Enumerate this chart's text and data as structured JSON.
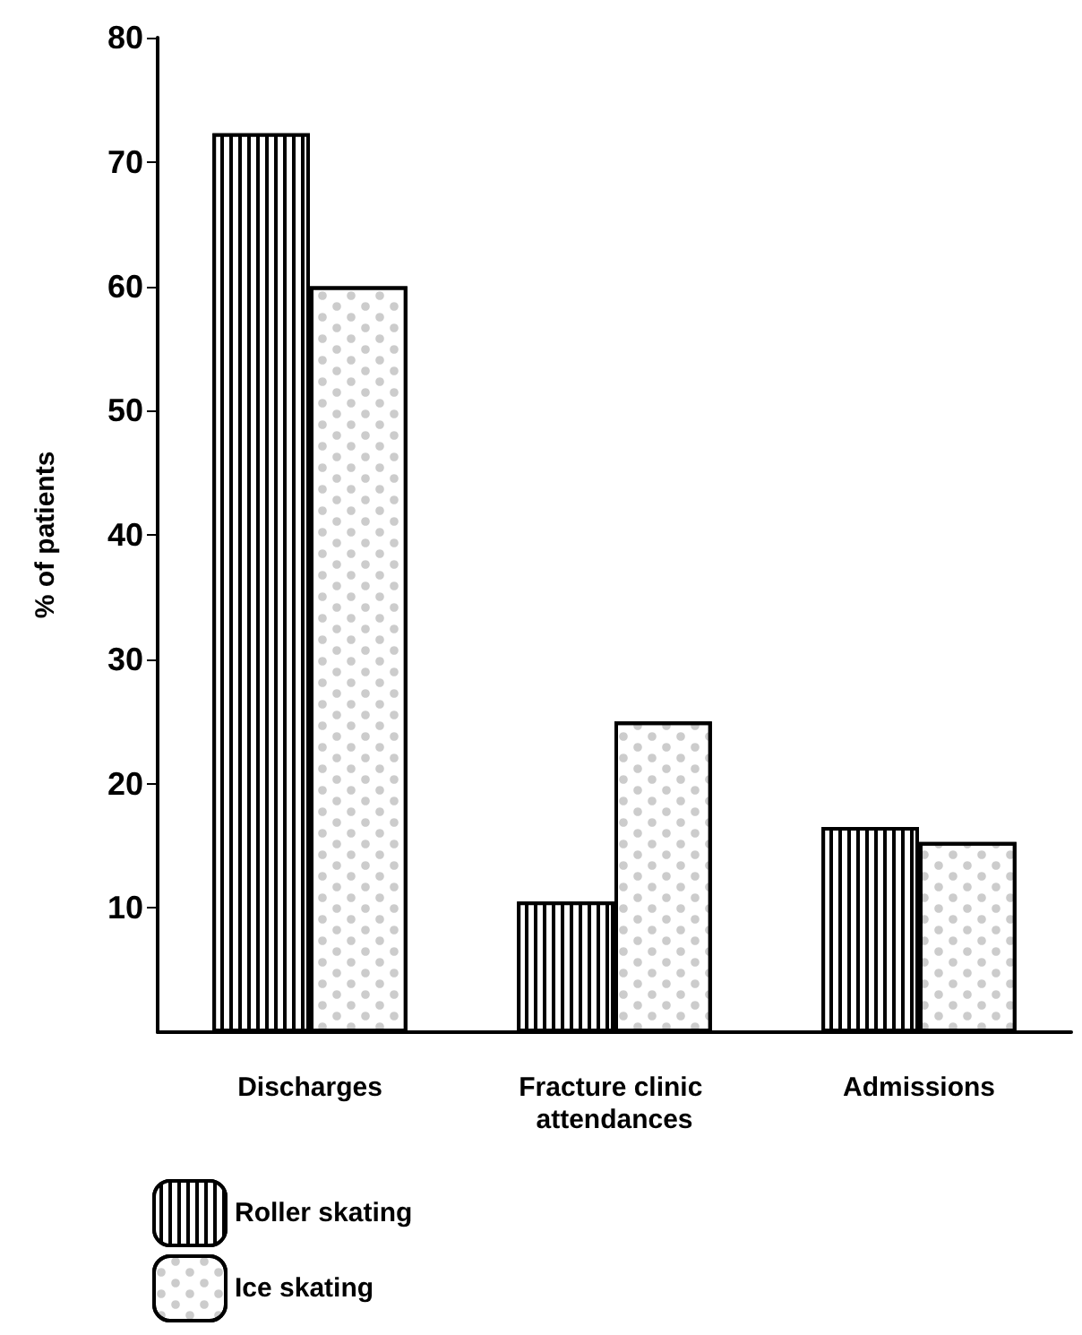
{
  "chart_data": {
    "type": "bar",
    "ylabel": "% of patients",
    "categories": [
      "Discharges",
      "Fracture clinic attendances",
      "Admissions"
    ],
    "series": [
      {
        "name": "Roller skating",
        "color": "#000000",
        "values": [
          72.3,
          10.5,
          16.5
        ]
      },
      {
        "name": "Ice skating",
        "color": "#ffffff",
        "values": [
          60,
          25,
          15.3
        ]
      }
    ],
    "ylim": [
      0,
      80
    ],
    "yticks": [
      10,
      20,
      30,
      40,
      50,
      60,
      70,
      80
    ],
    "grid": false,
    "legend": "bottom left"
  }
}
